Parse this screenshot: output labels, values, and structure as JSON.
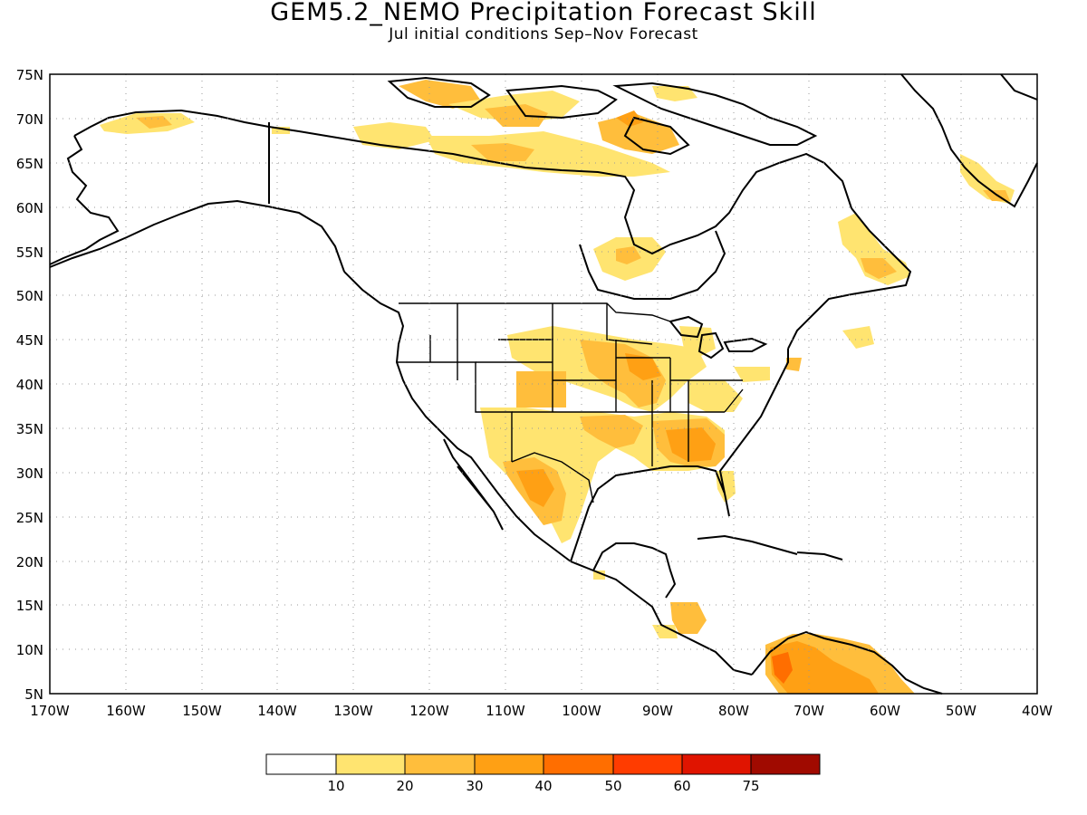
{
  "title": "GEM5.2_NEMO Precipitation Forecast Skill",
  "subtitle": "Jul initial conditions   Sep–Nov Forecast",
  "axes": {
    "lat_labels": [
      "75N",
      "70N",
      "65N",
      "60N",
      "55N",
      "50N",
      "45N",
      "40N",
      "35N",
      "30N",
      "25N",
      "20N",
      "15N",
      "10N",
      "5N"
    ],
    "lon_labels": [
      "170W",
      "160W",
      "150W",
      "140W",
      "130W",
      "120W",
      "110W",
      "100W",
      "90W",
      "80W",
      "70W",
      "60W",
      "50W",
      "40W"
    ],
    "lat_range": [
      5,
      75
    ],
    "lon_range": [
      -170,
      -40
    ],
    "grid": "dotted"
  },
  "legend": {
    "labels": [
      "10",
      "20",
      "30",
      "40",
      "50",
      "60",
      "75"
    ],
    "colors": [
      "#ffffff",
      "#ffe470",
      "#ffbe3c",
      "#ffa014",
      "#ff6e00",
      "#ff3c00",
      "#e01400",
      "#a00a00"
    ]
  }
}
